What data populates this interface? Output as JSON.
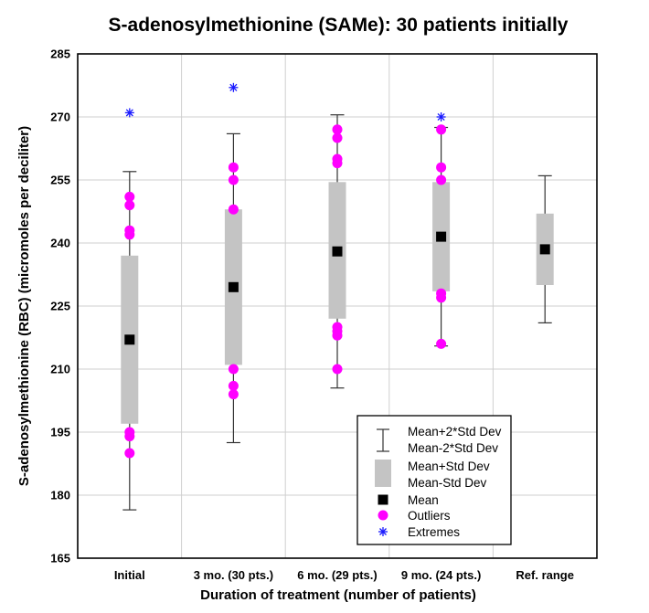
{
  "chart_data": {
    "type": "box",
    "title": "S-adenosylmethionine (SAMe):  30 patients initially",
    "xlabel": "Duration of treatment (number of patients)",
    "ylabel": "S-adenosylmethionine (RBC) (micromoles per deciliter)",
    "ylim": [
      165,
      285
    ],
    "yticks": [
      165,
      180,
      195,
      210,
      225,
      240,
      255,
      270,
      285
    ],
    "grid": true,
    "legend_position": "bottom-right",
    "categories": [
      "Initial",
      "3 mo. (30 pts.)",
      "6 mo. (29 pts.)",
      "9 mo. (24 pts.)",
      "Ref. range"
    ],
    "series": [
      {
        "name": "Initial",
        "mean": 217,
        "mean_plus_sd": 237,
        "mean_minus_sd": 197,
        "mean_plus_2sd": 257,
        "mean_minus_2sd": 176.5,
        "outliers": [
          251,
          249,
          243,
          242,
          195,
          194,
          190
        ],
        "extremes": [
          271
        ]
      },
      {
        "name": "3 mo. (30 pts.)",
        "mean": 229.5,
        "mean_plus_sd": 248,
        "mean_minus_sd": 211,
        "mean_plus_2sd": 266,
        "mean_minus_2sd": 192.5,
        "outliers": [
          258,
          255,
          248,
          210,
          206,
          204
        ],
        "extremes": [
          277
        ]
      },
      {
        "name": "6 mo. (29 pts.)",
        "mean": 238,
        "mean_plus_sd": 254.5,
        "mean_minus_sd": 222,
        "mean_plus_2sd": 270.5,
        "mean_minus_2sd": 205.5,
        "outliers": [
          267,
          265,
          260,
          259,
          220,
          219,
          218,
          210
        ],
        "extremes": []
      },
      {
        "name": "9 mo. (24 pts.)",
        "mean": 241.5,
        "mean_plus_sd": 254.5,
        "mean_minus_sd": 228.5,
        "mean_plus_2sd": 267.5,
        "mean_minus_2sd": 215.5,
        "outliers": [
          267,
          258,
          255,
          228,
          227,
          216
        ],
        "extremes": [
          270
        ]
      },
      {
        "name": "Ref. range",
        "mean": 238.5,
        "mean_plus_sd": 247,
        "mean_minus_sd": 230,
        "mean_plus_2sd": 256,
        "mean_minus_2sd": 221,
        "outliers": [],
        "extremes": []
      }
    ],
    "legend": {
      "whisker_upper": "Mean+2*Std Dev",
      "whisker_lower": "Mean-2*Std Dev",
      "box_upper": "Mean+Std Dev",
      "box_lower": "Mean-Std Dev",
      "mean": "Mean",
      "outliers": "Outliers",
      "extremes": "Extremes"
    },
    "colors": {
      "box": "#c4c4c4",
      "mean": "#000000",
      "outlier": "#ff00ff",
      "extreme": "#1a1aff",
      "whisker": "#333333",
      "grid": "#cfcfcf"
    }
  }
}
